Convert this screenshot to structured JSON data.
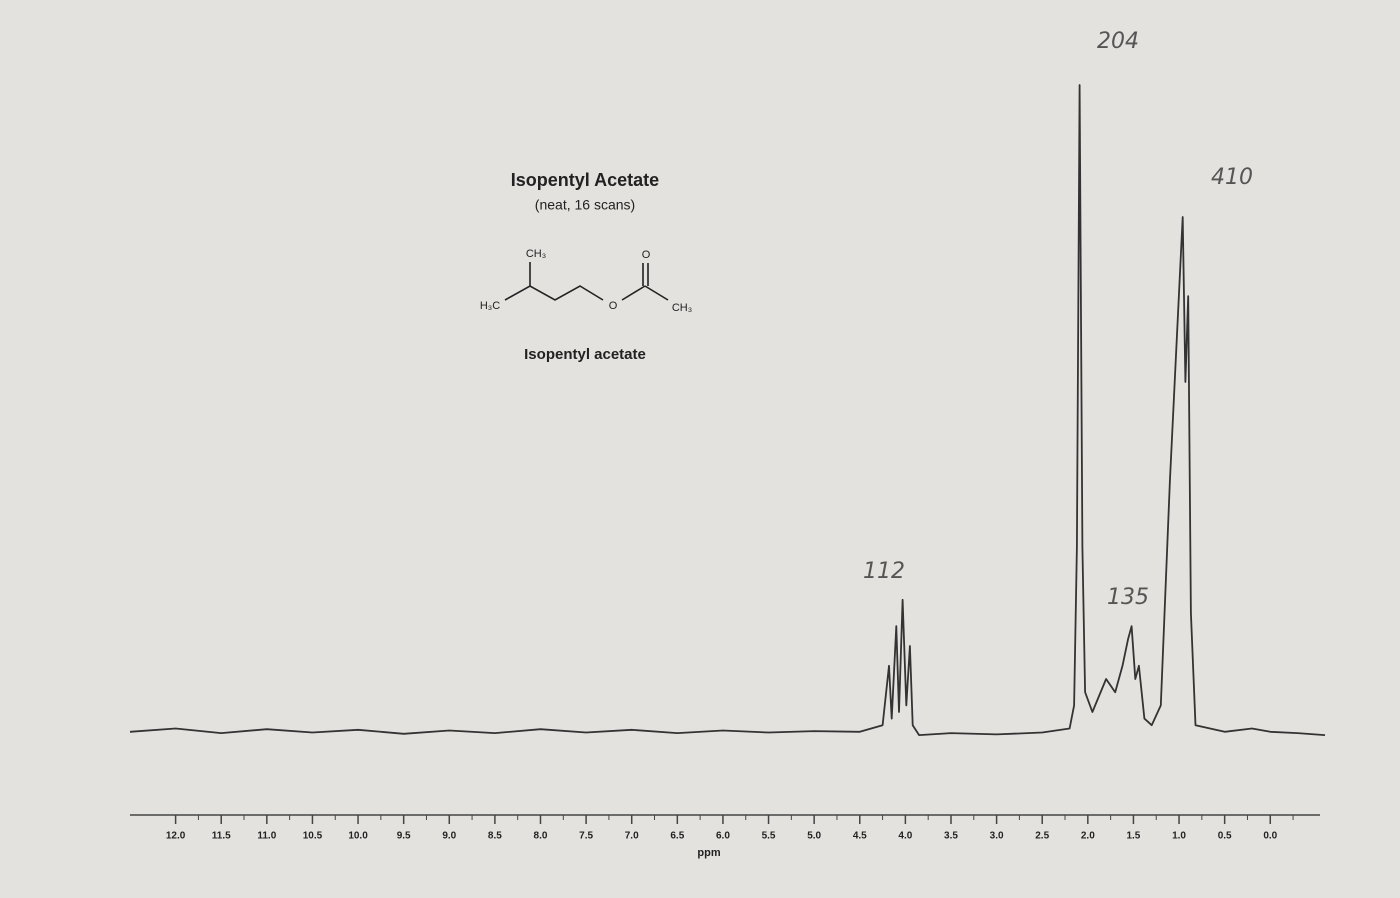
{
  "chart_data": {
    "type": "line",
    "title": "Isopentyl Acetate",
    "subtitle": "(neat, 16 scans)",
    "structure_labels": [
      "CH₃",
      "H₃C",
      "O",
      "O",
      "CH₃"
    ],
    "structure_name": "Isopentyl acetate",
    "x_label": "ppm",
    "annotations": [
      "204",
      "410",
      "112",
      "135"
    ],
    "xlim": [
      12.5,
      -0.6
    ],
    "ylim": [
      0,
      100
    ],
    "xticks": [
      {
        "value": 12,
        "label": "12.0"
      },
      11.5,
      {
        "value": 11,
        "label": "11.0"
      },
      10.5,
      {
        "value": 10,
        "label": "10.0"
      },
      9.5,
      {
        "value": 9,
        "label": "9.0"
      },
      8.5,
      {
        "value": 8,
        "label": "8.0"
      },
      7.5,
      {
        "value": 7,
        "label": "7.0"
      },
      6.5,
      {
        "value": 6,
        "label": "6.0"
      },
      5.5,
      {
        "value": 5,
        "label": "5.0"
      },
      4.5,
      {
        "value": 4,
        "label": "4.0"
      },
      3.5,
      {
        "value": 3,
        "label": "3.0"
      },
      2.5,
      {
        "value": 2,
        "label": "2.0"
      },
      1.5,
      {
        "value": 1,
        "label": "1.0"
      },
      0.5,
      {
        "value": 0,
        "label": "0.0"
      }
    ],
    "series": [
      {
        "color": "#333333",
        "x": [
          12.5,
          12.0,
          11.5,
          11.0,
          10.5,
          10.0,
          9.5,
          9.0,
          8.5,
          8.0,
          7.5,
          7.0,
          6.5,
          6.0,
          5.5,
          5.0,
          4.5,
          4.25,
          4.18,
          4.15,
          4.1,
          4.07,
          4.03,
          3.99,
          3.95,
          3.92,
          3.85,
          3.5,
          3.0,
          2.5,
          2.2,
          2.15,
          2.12,
          2.09,
          2.06,
          2.03,
          1.95,
          1.8,
          1.7,
          1.62,
          1.56,
          1.52,
          1.48,
          1.44,
          1.38,
          1.3,
          1.2,
          1.1,
          0.96,
          0.93,
          0.9,
          0.87,
          0.82,
          0.5,
          0.2,
          0.0,
          -0.3,
          -0.6
        ],
        "values": [
          2,
          2.5,
          1.8,
          2.4,
          1.9,
          2.3,
          1.7,
          2.2,
          1.8,
          2.4,
          1.9,
          2.3,
          1.8,
          2.2,
          1.9,
          2.1,
          2,
          3,
          12,
          4,
          18,
          5,
          22,
          6,
          15,
          3,
          1.5,
          1.8,
          1.6,
          1.9,
          2.5,
          6,
          30,
          100,
          30,
          8,
          5,
          10,
          8,
          12,
          16,
          18,
          10,
          12,
          4,
          3,
          6,
          40,
          80,
          55,
          68,
          20,
          3,
          2,
          2.5,
          2,
          1.8,
          1.5
        ]
      }
    ]
  }
}
